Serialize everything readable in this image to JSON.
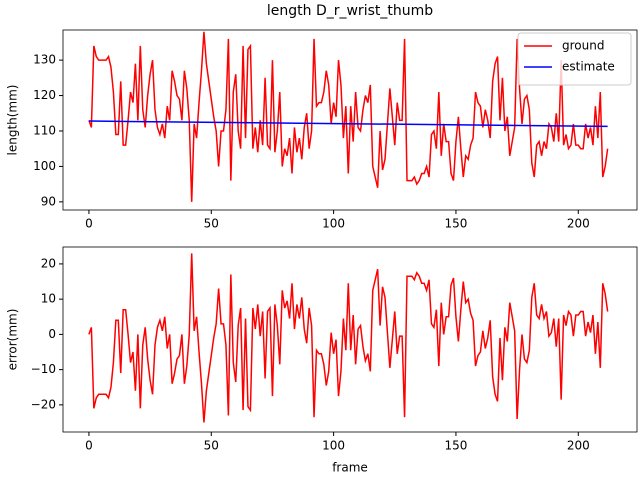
{
  "chart_data": [
    {
      "type": "line",
      "title": "length D_r_wrist_thumb",
      "ylabel": "length(mm)",
      "x": [
        0,
        1,
        2,
        3,
        4,
        5,
        6,
        7,
        8,
        9,
        10,
        11,
        12,
        13,
        14,
        15,
        16,
        17,
        18,
        19,
        20,
        21,
        22,
        23,
        24,
        25,
        26,
        27,
        28,
        29,
        30,
        31,
        32,
        33,
        34,
        35,
        36,
        37,
        38,
        39,
        40,
        41,
        42,
        43,
        44,
        45,
        46,
        47,
        48,
        49,
        50,
        51,
        52,
        53,
        54,
        55,
        56,
        57,
        58,
        59,
        60,
        61,
        62,
        63,
        64,
        65,
        66,
        67,
        68,
        69,
        70,
        71,
        72,
        73,
        74,
        75,
        76,
        77,
        78,
        79,
        80,
        81,
        82,
        83,
        84,
        85,
        86,
        87,
        88,
        89,
        90,
        91,
        92,
        93,
        94,
        95,
        96,
        97,
        98,
        99,
        100,
        101,
        102,
        103,
        104,
        105,
        106,
        107,
        108,
        109,
        110,
        111,
        112,
        113,
        114,
        115,
        116,
        117,
        118,
        119,
        120,
        121,
        122,
        123,
        124,
        125,
        126,
        127,
        128,
        129,
        130,
        131,
        132,
        133,
        134,
        135,
        136,
        137,
        138,
        139,
        140,
        141,
        142,
        143,
        144,
        145,
        146,
        147,
        148,
        149,
        150,
        151,
        152,
        153,
        154,
        155,
        156,
        157,
        158,
        159,
        160,
        161,
        162,
        163,
        164,
        165,
        166,
        167,
        168,
        169,
        170,
        171,
        172,
        173,
        174,
        175,
        176,
        177,
        178,
        179,
        180,
        181,
        182,
        183,
        184,
        185,
        186,
        187,
        188,
        189,
        190,
        191,
        192,
        193,
        194,
        195,
        196,
        197,
        198,
        199,
        200,
        201,
        202,
        203,
        204,
        205,
        206,
        207,
        208,
        209,
        210,
        211,
        212
      ],
      "series": [
        {
          "name": "ground",
          "color": "#ff0000",
          "values": [
            113,
            111,
            134,
            131,
            130,
            130,
            130,
            130,
            131,
            128,
            121,
            109,
            109,
            124,
            106,
            106,
            113,
            121,
            118,
            129,
            113,
            134,
            116,
            111,
            120,
            126,
            130,
            116,
            111,
            109,
            112,
            108,
            117,
            113,
            127,
            124,
            120,
            119,
            113,
            127,
            122,
            113,
            90,
            112,
            108,
            118,
            127,
            138,
            129,
            124,
            119,
            114,
            110,
            100,
            110,
            110,
            116,
            136,
            96,
            121,
            126,
            110,
            105,
            134,
            108,
            133,
            134,
            105,
            111,
            104,
            113,
            106,
            125,
            106,
            105,
            130,
            104,
            110,
            121,
            100,
            105,
            103,
            108,
            98,
            111,
            104,
            108,
            102,
            111,
            115,
            105,
            110,
            136,
            117,
            118,
            118,
            121,
            127,
            123,
            112,
            118,
            114,
            130,
            123,
            108,
            117,
            98,
            117,
            107,
            121,
            111,
            110,
            116,
            120,
            118,
            123,
            100,
            97,
            94,
            110,
            99,
            102,
            112,
            122,
            114,
            106,
            118,
            113,
            113,
            136,
            96,
            96,
            96,
            97,
            95,
            96,
            98,
            98,
            100,
            97,
            109,
            110,
            105,
            121,
            103,
            112,
            107,
            107,
            98,
            96,
            107,
            114,
            105,
            97,
            103,
            102,
            106,
            108,
            121,
            118,
            117,
            111,
            116,
            113,
            108,
            124,
            129,
            131,
            113,
            125,
            110,
            114,
            103,
            107,
            111,
            136,
            122,
            112,
            119,
            120,
            116,
            101,
            97,
            106,
            107,
            103,
            107,
            105,
            112,
            111,
            107,
            115,
            107,
            130,
            106,
            109,
            105,
            106,
            112,
            106,
            106,
            105,
            105,
            112,
            108,
            111,
            106,
            117,
            108,
            121,
            97,
            100,
            105
          ]
        },
        {
          "name": "estimate",
          "color": "#0000ff",
          "x": [
            0,
            212
          ],
          "values": [
            112.8,
            111.3
          ]
        }
      ],
      "xlim": [
        -10.6,
        224
      ],
      "ylim": [
        87.7,
        138.5
      ],
      "xticks": [
        0,
        50,
        100,
        150,
        200
      ],
      "yticks": [
        90,
        100,
        110,
        120,
        130
      ],
      "legend": "upper right"
    },
    {
      "type": "line",
      "ylabel": "error(mm)",
      "xlabel": "frame",
      "x": [
        0,
        1,
        2,
        3,
        4,
        5,
        6,
        7,
        8,
        9,
        10,
        11,
        12,
        13,
        14,
        15,
        16,
        17,
        18,
        19,
        20,
        21,
        22,
        23,
        24,
        25,
        26,
        27,
        28,
        29,
        30,
        31,
        32,
        33,
        34,
        35,
        36,
        37,
        38,
        39,
        40,
        41,
        42,
        43,
        44,
        45,
        46,
        47,
        48,
        49,
        50,
        51,
        52,
        53,
        54,
        55,
        56,
        57,
        58,
        59,
        60,
        61,
        62,
        63,
        64,
        65,
        66,
        67,
        68,
        69,
        70,
        71,
        72,
        73,
        74,
        75,
        76,
        77,
        78,
        79,
        80,
        81,
        82,
        83,
        84,
        85,
        86,
        87,
        88,
        89,
        90,
        91,
        92,
        93,
        94,
        95,
        96,
        97,
        98,
        99,
        100,
        101,
        102,
        103,
        104,
        105,
        106,
        107,
        108,
        109,
        110,
        111,
        112,
        113,
        114,
        115,
        116,
        117,
        118,
        119,
        120,
        121,
        122,
        123,
        124,
        125,
        126,
        127,
        128,
        129,
        130,
        131,
        132,
        133,
        134,
        135,
        136,
        137,
        138,
        139,
        140,
        141,
        142,
        143,
        144,
        145,
        146,
        147,
        148,
        149,
        150,
        151,
        152,
        153,
        154,
        155,
        156,
        157,
        158,
        159,
        160,
        161,
        162,
        163,
        164,
        165,
        166,
        167,
        168,
        169,
        170,
        171,
        172,
        173,
        174,
        175,
        176,
        177,
        178,
        179,
        180,
        181,
        182,
        183,
        184,
        185,
        186,
        187,
        188,
        189,
        190,
        191,
        192,
        193,
        194,
        195,
        196,
        197,
        198,
        199,
        200,
        201,
        202,
        203,
        204,
        205,
        206,
        207,
        208,
        209,
        210,
        211,
        212
      ],
      "series": [
        {
          "color": "#ff0000",
          "values": [
            0,
            2,
            -21,
            -18,
            -17,
            -17,
            -17,
            -17,
            -18,
            -15,
            -8,
            4,
            4,
            -11,
            7,
            7,
            0,
            -8,
            -5,
            -16,
            0,
            -21,
            -3,
            2,
            -7,
            -13,
            -17,
            -3,
            2,
            4,
            1,
            5,
            -4,
            0,
            -14,
            -11,
            -7,
            -6,
            0,
            -14,
            -9,
            0,
            23,
            1,
            5,
            -5,
            -14,
            -25,
            -16,
            -11,
            -6,
            -1,
            3,
            13,
            3,
            3,
            -3,
            -23,
            17,
            -8,
            -13.5,
            2.5,
            7.5,
            -21.5,
            4.5,
            -20.5,
            -21.5,
            7.5,
            1.5,
            8.5,
            -0.5,
            6.5,
            -12.5,
            6.5,
            7.5,
            -17.5,
            8.5,
            2.5,
            -8.5,
            12.5,
            7.5,
            9.5,
            4.5,
            14.5,
            1.5,
            8.5,
            4.5,
            10.5,
            1.5,
            -2.5,
            7.5,
            2.5,
            -23.5,
            -4.5,
            -5.5,
            -5.5,
            -8.5,
            -14.5,
            -10.5,
            0.5,
            -5.5,
            -1.5,
            -17.5,
            -10.5,
            4.5,
            -4.5,
            14.5,
            -4.5,
            5.5,
            -8.5,
            1.5,
            2.5,
            -3.5,
            -7.5,
            -5.5,
            -10.5,
            12.5,
            15.5,
            18.5,
            2.5,
            13.5,
            10.5,
            0.5,
            -9.5,
            -1.5,
            6.5,
            -5.5,
            -0.5,
            -0.5,
            -23.5,
            16.5,
            16.5,
            16.5,
            15.5,
            17.5,
            16.5,
            14.5,
            14.5,
            12.5,
            15.5,
            3,
            2,
            7,
            -9,
            9,
            0,
            5,
            5,
            14,
            16,
            5,
            -2,
            7,
            15,
            9,
            10,
            6,
            4,
            -9,
            -6,
            -5,
            1,
            -4,
            -1,
            4,
            -12,
            -17,
            -19,
            -1,
            -13,
            2,
            -2,
            9,
            5,
            1,
            -24,
            -10,
            0,
            -7,
            -8,
            -4.5,
            10.5,
            14.5,
            5.5,
            4.5,
            8.5,
            4.5,
            6.5,
            -0.5,
            0.5,
            4.5,
            -3.5,
            4.5,
            -18.5,
            5.5,
            2.5,
            6.5,
            5.5,
            -0.5,
            5.5,
            5.5,
            6.5,
            6.5,
            -0.5,
            3.5,
            0.5,
            5.5,
            -5.5,
            3.5,
            -9.5,
            14.5,
            11.5,
            6.5
          ]
        }
      ],
      "xlim": [
        -10.6,
        224
      ],
      "ylim": [
        -27.7,
        24.8
      ],
      "xticks": [
        0,
        50,
        100,
        150,
        200
      ],
      "yticks": [
        {
          "value": -20,
          "label": "−20"
        },
        {
          "value": -10,
          "label": "−10"
        },
        0,
        10,
        20
      ]
    }
  ]
}
